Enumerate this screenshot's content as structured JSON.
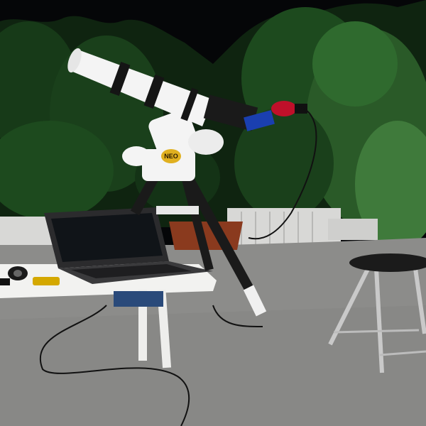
{
  "scene": {
    "description_free": true,
    "mount_badge": {
      "label": "NEO"
    },
    "colors": {
      "sky": "#050608",
      "foliage_dark": "#0f2410",
      "foliage_mid": "#1d4a1e",
      "foliage_light": "#3f7a3b",
      "pavement": "#8c8c8a",
      "wall": "#d8d8d6",
      "telescope_body": "#f4f4f4",
      "telescope_band": "#151515",
      "tripod_leg": "#1a1a1a",
      "laptop": "#2b2b2d",
      "laptop_screen": "#101418",
      "table": "#f2f2f0",
      "stool_seat": "#1b1b1b",
      "stool_leg": "#c9c9c9",
      "accent_red": "#c0102a",
      "accent_blue": "#1a3fb0",
      "badge_gold": "#e0b020"
    }
  }
}
